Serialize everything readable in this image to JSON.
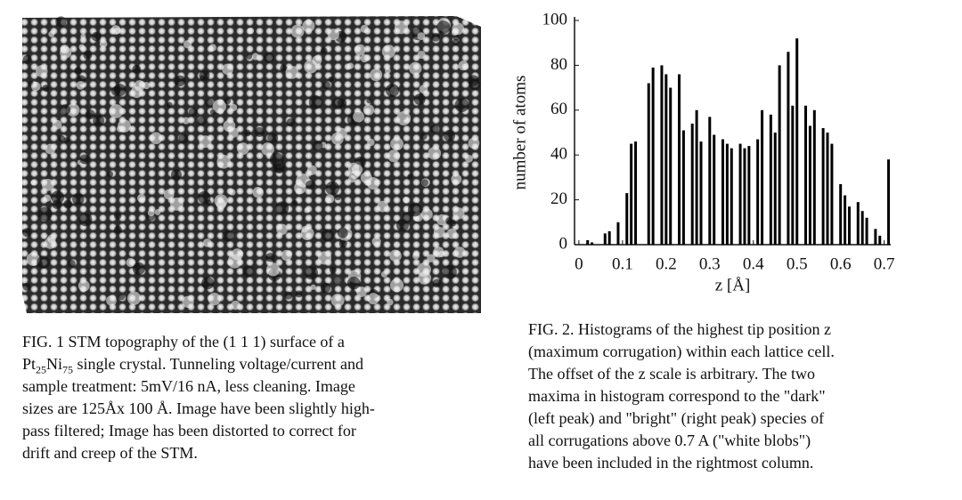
{
  "figure1": {
    "caption": [
      "FIG. 1 STM topography of the (1 1 1) surface of a",
      [
        "Pt",
        "25",
        "Ni",
        "75",
        " single crystal. Tunneling voltage/current and"
      ],
      "sample treatment: 5mV/16 nA, less cleaning. Image",
      "sizes are 125Åx 100 Å. Image have been slightly high-",
      "pass filtered; Image has been distorted to correct for",
      "drift and creep of the STM."
    ]
  },
  "chart_data": {
    "type": "bar",
    "x_label": "z [Å]",
    "y_label": "number of atoms",
    "x": [
      0.02,
      0.03,
      0.06,
      0.07,
      0.09,
      0.11,
      0.12,
      0.13,
      0.16,
      0.17,
      0.19,
      0.2,
      0.21,
      0.23,
      0.24,
      0.26,
      0.27,
      0.28,
      0.3,
      0.31,
      0.33,
      0.34,
      0.35,
      0.37,
      0.38,
      0.39,
      0.41,
      0.42,
      0.44,
      0.45,
      0.46,
      0.48,
      0.49,
      0.5,
      0.52,
      0.53,
      0.54,
      0.56,
      0.57,
      0.58,
      0.6,
      0.61,
      0.62,
      0.64,
      0.65,
      0.66,
      0.68,
      0.69,
      0.71
    ],
    "values": [
      2,
      1,
      5,
      6,
      10,
      23,
      45,
      46,
      72,
      79,
      80,
      76,
      70,
      76,
      51,
      54,
      60,
      46,
      57,
      49,
      47,
      45,
      43,
      45,
      43,
      44,
      47,
      60,
      58,
      50,
      80,
      86,
      62,
      92,
      62,
      53,
      60,
      52,
      50,
      45,
      27,
      22,
      17,
      19,
      15,
      12,
      7,
      4,
      38
    ],
    "color": "#000000",
    "xlim": [
      -0.01,
      0.715
    ],
    "ylim": [
      0,
      100
    ],
    "xticks": [
      0,
      0.1,
      0.2,
      0.3,
      0.4,
      0.5,
      0.6,
      0.7
    ],
    "yticks": [
      0,
      20,
      40,
      60,
      80,
      100
    ]
  },
  "figure2": {
    "caption": [
      "FIG. 2. Histograms of the highest tip position z",
      "(maximum corrugation) within each lattice cell.",
      "The offset of the z scale is arbitrary. The two",
      "maxima in histogram correspond to the \"dark\"",
      "(left peak) and \"bright\" (right peak) species of",
      "all corrugations above 0.7 A (\"white blobs\")",
      "have been included in the rightmost column."
    ]
  }
}
